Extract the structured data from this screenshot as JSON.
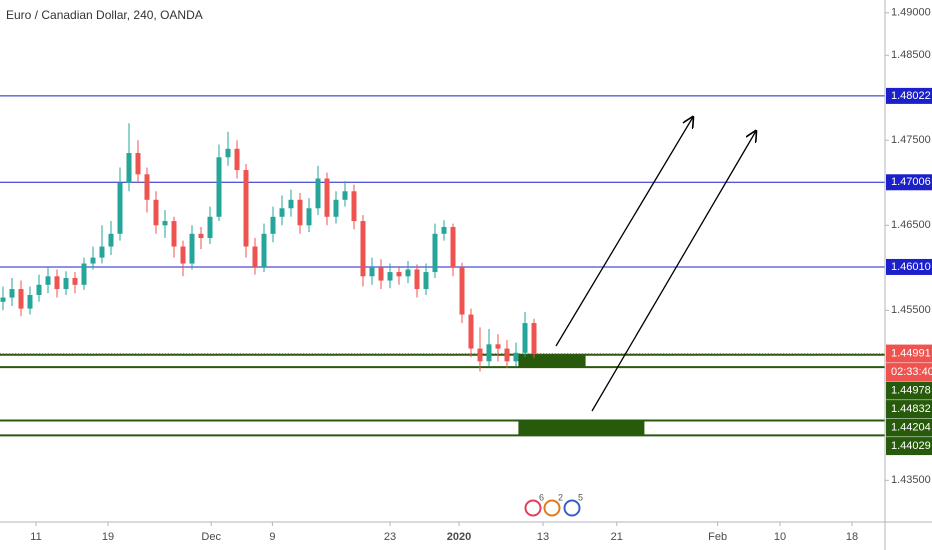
{
  "chart_data": {
    "type": "candlestick",
    "title": "Euro / Canadian Dollar, 240, OANDA",
    "x": [
      0.25,
      1,
      1.75,
      2.5,
      3.25,
      4,
      4.75,
      5.5,
      6.25,
      7,
      7.75,
      8.5,
      9.25,
      10,
      10.75,
      11.5,
      12.25,
      13,
      13.75,
      14.5,
      15.25,
      16,
      16.75,
      17.5,
      18.25,
      19,
      19.75,
      20.5,
      21.25,
      22,
      22.75,
      23.5,
      24.25,
      25,
      25.75,
      26.5,
      27.25,
      28,
      28.75,
      29.5,
      30.25,
      31,
      31.75,
      32.5,
      33.25,
      34,
      34.75,
      35.5,
      36.25,
      37,
      37.75,
      38.5,
      39.25,
      40,
      40.75,
      41.5,
      42.25,
      43,
      43.75,
      44.5
    ],
    "open": [
      1.456,
      1.4565,
      1.4575,
      1.4552,
      1.4568,
      1.458,
      1.459,
      1.4575,
      1.4588,
      1.458,
      1.4605,
      1.4612,
      1.4625,
      1.464,
      1.47,
      1.4735,
      1.471,
      1.468,
      1.465,
      1.4655,
      1.4625,
      1.4605,
      1.464,
      1.4635,
      1.466,
      1.473,
      1.474,
      1.4715,
      1.4625,
      1.46,
      1.464,
      1.466,
      1.467,
      1.468,
      1.465,
      1.467,
      1.4705,
      1.466,
      1.468,
      1.469,
      1.4655,
      1.459,
      1.46,
      1.4585,
      1.4595,
      1.459,
      1.4598,
      1.4575,
      1.4595,
      1.464,
      1.4648,
      1.46,
      1.4545,
      1.4505,
      1.449,
      1.451,
      1.4505,
      1.449,
      1.45,
      1.4535
    ],
    "high": [
      1.4578,
      1.4588,
      1.4585,
      1.4578,
      1.4592,
      1.46,
      1.4598,
      1.4596,
      1.4595,
      1.4612,
      1.4625,
      1.465,
      1.4655,
      1.4718,
      1.477,
      1.475,
      1.4718,
      1.469,
      1.4668,
      1.466,
      1.4632,
      1.465,
      1.4648,
      1.4672,
      1.4745,
      1.476,
      1.475,
      1.4722,
      1.4635,
      1.4652,
      1.4672,
      1.4685,
      1.4692,
      1.4688,
      1.4682,
      1.472,
      1.4712,
      1.469,
      1.4702,
      1.4698,
      1.4662,
      1.4612,
      1.461,
      1.4605,
      1.4602,
      1.4608,
      1.4604,
      1.4605,
      1.4652,
      1.4656,
      1.4652,
      1.4606,
      1.4552,
      1.453,
      1.4528,
      1.4522,
      1.4515,
      1.4512,
      1.4548,
      1.454
    ],
    "low": [
      1.455,
      1.4555,
      1.4543,
      1.4545,
      1.456,
      1.457,
      1.4565,
      1.4568,
      1.457,
      1.4574,
      1.4598,
      1.4605,
      1.4615,
      1.4632,
      1.469,
      1.47,
      1.4665,
      1.464,
      1.4635,
      1.4612,
      1.459,
      1.4598,
      1.4622,
      1.4628,
      1.4655,
      1.472,
      1.4705,
      1.4612,
      1.4592,
      1.4595,
      1.463,
      1.465,
      1.466,
      1.464,
      1.4642,
      1.4662,
      1.465,
      1.4652,
      1.4672,
      1.4645,
      1.4578,
      1.458,
      1.4575,
      1.4576,
      1.458,
      1.4582,
      1.4565,
      1.4568,
      1.4588,
      1.4632,
      1.459,
      1.4535,
      1.4495,
      1.4478,
      1.4484,
      1.449,
      1.4482,
      1.4484,
      1.4495,
      1.4494
    ],
    "close": [
      1.4565,
      1.4575,
      1.4552,
      1.4568,
      1.458,
      1.459,
      1.4575,
      1.4588,
      1.458,
      1.4605,
      1.4612,
      1.4625,
      1.464,
      1.47,
      1.4735,
      1.471,
      1.468,
      1.465,
      1.4655,
      1.4625,
      1.4605,
      1.464,
      1.4635,
      1.466,
      1.473,
      1.474,
      1.4715,
      1.4625,
      1.46,
      1.464,
      1.466,
      1.467,
      1.468,
      1.465,
      1.467,
      1.4705,
      1.466,
      1.468,
      1.469,
      1.4655,
      1.459,
      1.46,
      1.4585,
      1.4595,
      1.459,
      1.4598,
      1.4575,
      1.4595,
      1.464,
      1.4648,
      1.46,
      1.4545,
      1.4505,
      1.449,
      1.451,
      1.4505,
      1.449,
      1.45,
      1.4535,
      1.4499
    ],
    "up_color": "#26a69a",
    "down_color": "#ef5350",
    "xlim": [
      0,
      73.75
    ],
    "xticks": [
      {
        "value": 3,
        "label": "11"
      },
      {
        "value": 9,
        "label": "19"
      },
      {
        "value": 17.6,
        "label": "Dec"
      },
      {
        "value": 22.7,
        "label": "9"
      },
      {
        "value": 32.5,
        "label": "23"
      },
      {
        "value": 38.25,
        "label": "2020"
      },
      {
        "value": 45.25,
        "label": "13"
      },
      {
        "value": 51.4,
        "label": "21"
      },
      {
        "value": 59.8,
        "label": "Feb"
      },
      {
        "value": 65,
        "label": "10"
      },
      {
        "value": 71,
        "label": "18"
      }
    ],
    "ylim": [
      1.4301,
      1.4915
    ],
    "yticks": [
      {
        "value": 1.49,
        "label": "1.49000"
      },
      {
        "value": 1.485,
        "label": "1.48500"
      },
      {
        "value": 1.475,
        "label": "1.47500"
      },
      {
        "value": 1.465,
        "label": "1.46500"
      },
      {
        "value": 1.455,
        "label": "1.45500"
      },
      {
        "value": 1.435,
        "label": "1.43500"
      }
    ],
    "levels": [
      1.48022,
      1.47006,
      {
        "value": 1.4601,
        "label": "1.46010"
      }
    ],
    "level_color": "#1c20c8",
    "zones": [
      {
        "top": 1.44978,
        "bottom": 1.44832,
        "x_start": 43.2,
        "x_end": 48.8
      },
      {
        "top": 1.44204,
        "bottom": 1.44029,
        "x_start": 43.2,
        "x_end": 53.7
      }
    ],
    "zone_color": "#285a0c",
    "last_price": 1.44991,
    "countdown": "02:33:40",
    "events": [
      6,
      2,
      5
    ]
  }
}
